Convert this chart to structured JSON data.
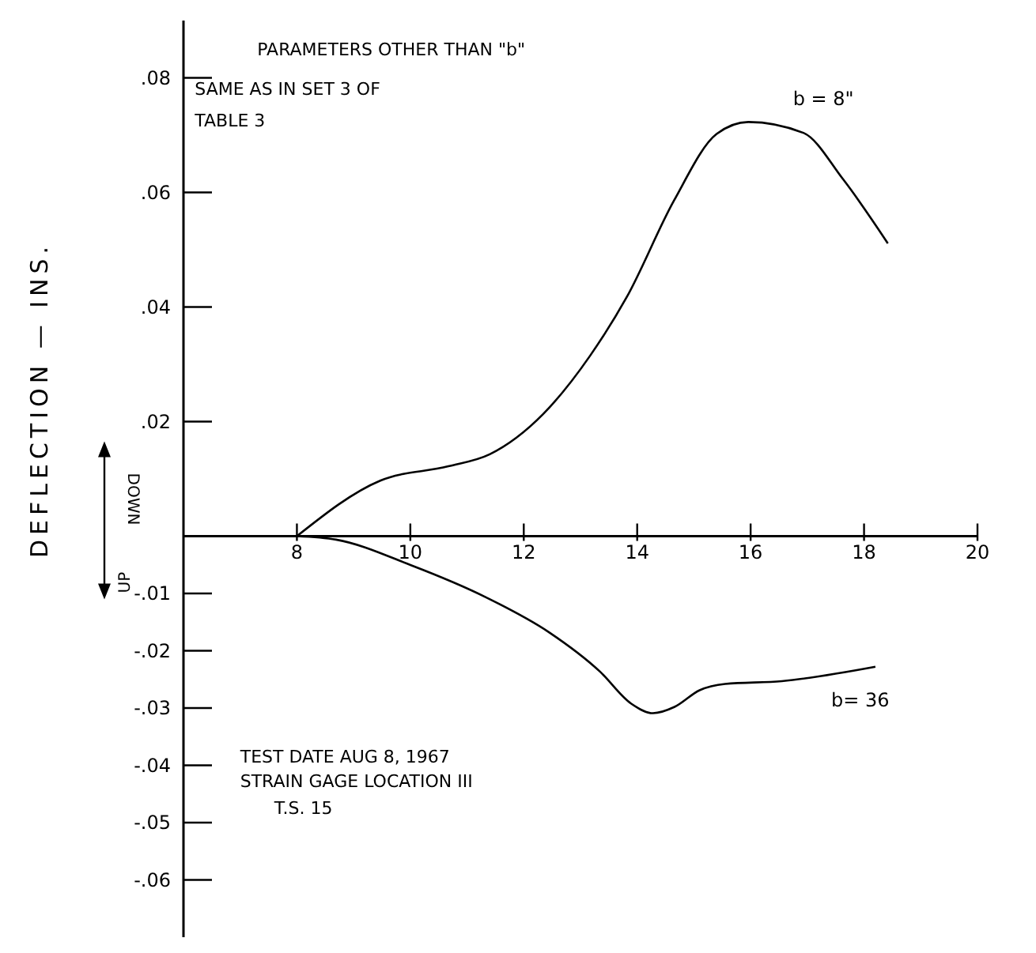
{
  "chart_data": {
    "type": "line",
    "ylabel": "DEFLECTION — INS.",
    "xlim": [
      6,
      20
    ],
    "ylim": [
      -0.07,
      0.09
    ],
    "xticks": [
      8,
      10,
      12,
      14,
      16,
      18,
      20
    ],
    "yticks": [
      {
        "value": 0.08,
        "label": ".08"
      },
      {
        "value": 0.06,
        "label": ".06"
      },
      {
        "value": 0.04,
        "label": ".04"
      },
      {
        "value": 0.02,
        "label": ".02"
      },
      {
        "value": -0.01,
        "label": "-.01"
      },
      {
        "value": -0.02,
        "label": "-.02"
      },
      {
        "value": -0.03,
        "label": "-.03"
      },
      {
        "value": -0.04,
        "label": "-.04"
      },
      {
        "value": -0.05,
        "label": "-.05"
      },
      {
        "value": -0.06,
        "label": "-.06"
      }
    ],
    "series": [
      {
        "name": "b = 8\"",
        "color": "#000000",
        "x": [
          8,
          9.47,
          10.67,
          11.4,
          12.34,
          13.17,
          13.82,
          14.65,
          15.4,
          15.96,
          16.93,
          17.63,
          18.42
        ],
        "values": [
          0,
          0.0097,
          0.0122,
          0.0143,
          0.0213,
          0.0315,
          0.0418,
          0.0586,
          0.0702,
          0.0723,
          0.0704,
          0.0623,
          0.0511
        ]
      },
      {
        "name": "b= 36",
        "color": "#000000",
        "x": [
          8,
          8.69,
          10.02,
          11.34,
          12.45,
          13.34,
          13.89,
          14.28,
          14.66,
          15.1,
          15.55,
          16.55,
          18.2
        ],
        "values": [
          0,
          -0.0006,
          -0.0051,
          -0.0107,
          -0.0168,
          -0.0236,
          -0.0292,
          -0.0309,
          -0.0298,
          -0.0269,
          -0.0258,
          -0.0253,
          -0.0228
        ]
      }
    ],
    "annotations": [
      "PARAMETERS OTHER THAN \"b\"",
      "SAME AS IN SET 3 OF",
      "TABLE 3",
      "TEST DATE AUG 8, 1967",
      "STRAIN GAGE LOCATION III",
      "T.S. 15",
      "DOWN",
      "UP"
    ],
    "marker": "none",
    "line_style": "solid",
    "grid": false
  }
}
